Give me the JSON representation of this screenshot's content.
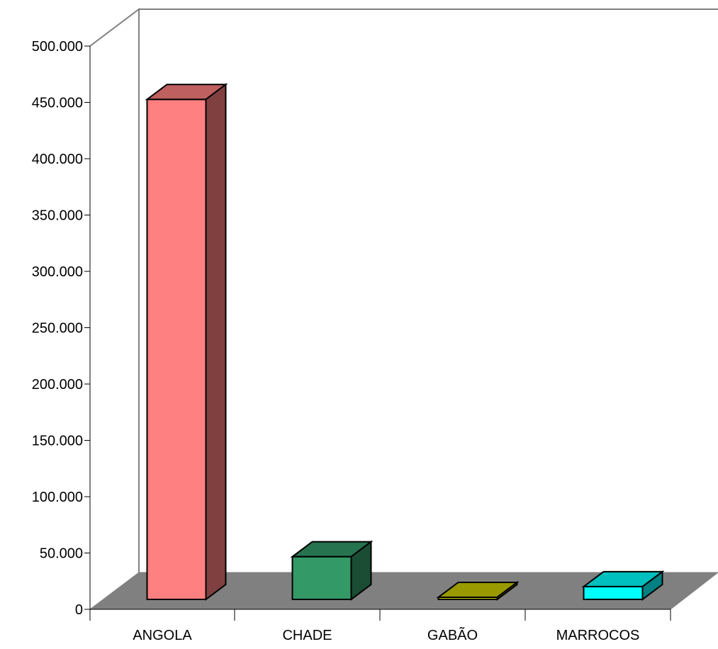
{
  "chart_data": {
    "type": "bar",
    "style": "3d",
    "title": "",
    "xlabel": "",
    "ylabel": "",
    "categories": [
      "ANGOLA",
      "CHADE",
      "GABÃO",
      "MARROCOS"
    ],
    "values": [
      468000,
      40000,
      2000,
      12000
    ],
    "ylim": [
      0,
      500000
    ],
    "yticks": [
      0,
      50000,
      100000,
      150000,
      200000,
      250000,
      300000,
      350000,
      400000,
      450000,
      500000
    ],
    "ytick_labels": [
      "0",
      "50.000",
      "100.000",
      "150.000",
      "200.000",
      "250.000",
      "300.000",
      "350.000",
      "400.000",
      "450.000",
      "500.000"
    ],
    "grid": false,
    "legend": "none",
    "colors": {
      "bars_front": [
        "#FF8080",
        "#339966",
        "#CCCC00",
        "#00FFFF"
      ],
      "bars_top": [
        "#BF6060",
        "#267350",
        "#999900",
        "#00BFBF"
      ],
      "bars_side": [
        "#804040",
        "#1A4D33",
        "#666600",
        "#008080"
      ],
      "floor": "#808080",
      "wall_lines": "#808080",
      "axis": "#000000"
    }
  }
}
